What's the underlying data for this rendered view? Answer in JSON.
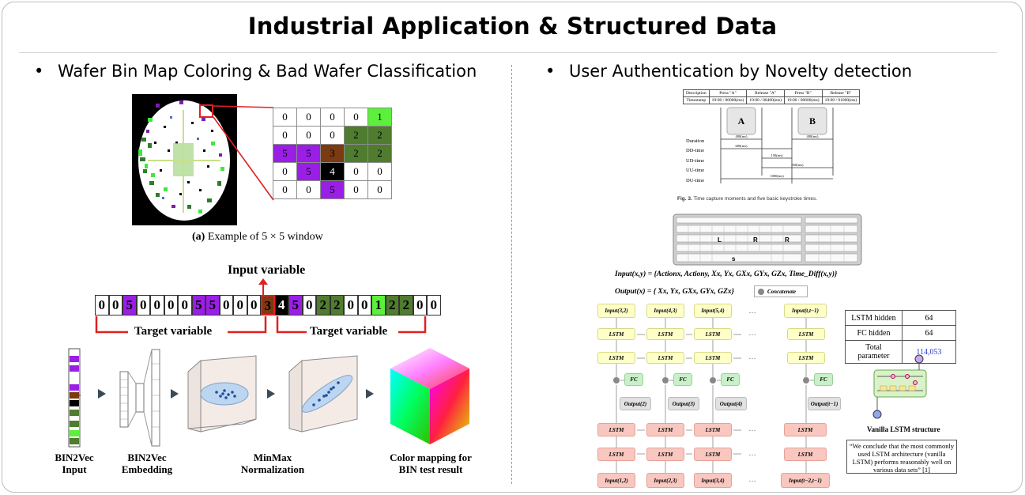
{
  "title": "Industrial Application & Structured Data",
  "left": {
    "bullet": "Wafer Bin Map Coloring & Bad Wafer Classification",
    "window_grid": [
      [
        "0",
        "0",
        "0",
        "0",
        "1"
      ],
      [
        "0",
        "0",
        "0",
        "2",
        "2"
      ],
      [
        "5",
        "5",
        "3",
        "2",
        "2"
      ],
      [
        "0",
        "5",
        "4",
        "0",
        "0"
      ],
      [
        "0",
        "0",
        "5",
        "0",
        "0"
      ]
    ],
    "window_caption_prefix": "(a)",
    "window_caption": "Example of 5 × 5 window",
    "input_variable_label": "Input variable",
    "sequence": [
      "0",
      "0",
      "5",
      "0",
      "0",
      "0",
      "0",
      "5",
      "5",
      "0",
      "0",
      "0",
      "3",
      "4",
      "5",
      "0",
      "2",
      "2",
      "0",
      "0",
      "1",
      "2",
      "2",
      "0",
      "0"
    ],
    "target_label_left": "Target variable",
    "target_label_right": "Target variable",
    "steps": [
      {
        "line1": "BIN2Vec",
        "line2": "Input"
      },
      {
        "line1": "BIN2Vec",
        "line2": "Embedding"
      },
      {
        "line1": "MinMax",
        "line2": "Normalization"
      },
      {
        "line1": "Color mapping for",
        "line2": "BIN test result"
      }
    ]
  },
  "right": {
    "bullet": "User Authentication by Novelty detection",
    "timing_table": {
      "row1": [
        "Description",
        "Press \"A\"",
        "Release \"A\"",
        "Press \"B\"",
        "Release \"B\""
      ],
      "row2": [
        "Timestamp",
        "19:00 / 00000(ms)",
        "19:00 / 00400(ms)",
        "19:00 / 00600(ms)",
        "19:00 / 01000(ms)"
      ]
    },
    "key_a": "A",
    "key_b": "B",
    "timing_rows": [
      "Duration",
      "DD-time",
      "UD-time",
      "UU-time",
      "DU-time"
    ],
    "timing_values": [
      "400(ms)",
      "400(ms)",
      "600(ms)",
      "150(ms)",
      "550(ms)",
      "1000(ms)"
    ],
    "fig_caption_bold": "Fig. 3.",
    "fig_caption": "Time capture moments and five basic keystroke times.",
    "keyboard_keys": [
      "L",
      "R",
      "R",
      "s"
    ],
    "input_formula": "Input(x,y) = {Actionx, Actiony, Xx, Yx, GXx, GYx, GZx, Time_Diff(x,y)}",
    "output_formula": "Output(x) = { Xx, Yx, GXx, GYx, GZx}",
    "concatenate_label": "Concatenate",
    "lstm_label": "LSTM",
    "fc_label": "FC",
    "inputs_top": [
      "Input(3,2)",
      "Input(4,3)",
      "Input(5,4)",
      "Input(t,t−1)"
    ],
    "outputs": [
      "Output(2)",
      "Output(3)",
      "Output(4)",
      "Output(t−1)"
    ],
    "inputs_bottom": [
      "Input(1,2)",
      "Input(2,3)",
      "Input(3,4)",
      "Input(t−2,t−1)"
    ],
    "ellipsis": "…",
    "lstm_table": [
      {
        "k": "LSTM hidden",
        "v": "64"
      },
      {
        "k": "FC hidden",
        "v": "64"
      },
      {
        "k": "Total parameter",
        "v": "114,053"
      }
    ],
    "vanilla_caption": "Vanilla LSTM structure",
    "quote": "“We conclude that the most commonly used LSTM architecture (vanilla LSTM) performs reasonably well on various data sets” [1]",
    "colors": {
      "purple": "#9b1ee6",
      "brown": "#7a3a12",
      "dark_green": "#4f7c2f",
      "light_green": "#5cf03c",
      "red": "#e02020"
    }
  }
}
